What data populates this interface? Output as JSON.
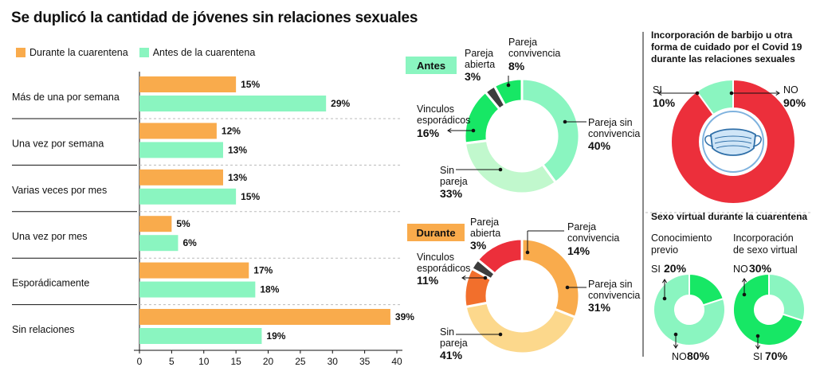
{
  "title": "Se duplicó la cantidad de jóvenes sin relaciones sexuales",
  "colors": {
    "durante": "#f9ab4c",
    "antes": "#8af5c0",
    "red": "#ec2f3b",
    "green": "#17e765",
    "lightgreen": "#8af5c0",
    "palegreen": "#c1f8cd",
    "orange": "#f9ab4c",
    "paleorange": "#fcd88c",
    "darkorange": "#f26f2c",
    "darkgray": "#3d3d3d"
  },
  "legend": {
    "durante": "Durante la cuarentena",
    "antes": "Antes de la cuarentena"
  },
  "chart_data": [
    {
      "type": "bar",
      "orientation": "horizontal",
      "categories": [
        "Más de una por semana",
        "Una vez por semana",
        "Varias veces por mes",
        "Una vez por mes",
        "Esporádicamente",
        "Sin relaciones"
      ],
      "series": [
        {
          "name": "Durante la cuarentena",
          "values": [
            15,
            12,
            13,
            5,
            17,
            39
          ],
          "labels": [
            "15%",
            "12%",
            "13%",
            "5%",
            "17%",
            "39%"
          ]
        },
        {
          "name": "Antes de la cuarentena",
          "values": [
            29,
            13,
            15,
            6,
            18,
            19
          ],
          "labels": [
            "29%",
            "13%",
            "15%",
            "6%",
            "18%",
            "19%"
          ]
        }
      ],
      "xlim": [
        0,
        40
      ],
      "ticks": [
        "0",
        "5",
        "10",
        "15",
        "20",
        "25",
        "30",
        "35",
        "40"
      ]
    },
    {
      "type": "pie",
      "tag": "Antes",
      "slices": [
        {
          "name": "Pareja sin convivencia",
          "line1": "Pareja sin",
          "line2": "convivencia",
          "value": 40,
          "label": "40%",
          "color": "#8af5c0"
        },
        {
          "name": "Sin pareja",
          "line1": "Sin",
          "line2": "pareja",
          "value": 33,
          "label": "33%",
          "color": "#c1f8cd"
        },
        {
          "name": "Vinculos esporádicos",
          "line1": "Vinculos",
          "line2": "esporádicos",
          "value": 16,
          "label": "16%",
          "color": "#17e765"
        },
        {
          "name": "Pareja abierta",
          "line1": "Pareja",
          "line2": "abierta",
          "value": 3,
          "label": "3%",
          "color": "#3d3d3d"
        },
        {
          "name": "Pareja convivencia",
          "line1": "Pareja",
          "line2": "convivencia",
          "value": 8,
          "label": "8%",
          "color": "#17e765"
        }
      ]
    },
    {
      "type": "pie",
      "tag": "Durante",
      "slices": [
        {
          "name": "Pareja sin convivencia",
          "line1": "Pareja sin",
          "line2": "convivencia",
          "value": 31,
          "label": "31%",
          "color": "#f9ab4c"
        },
        {
          "name": "Sin pareja",
          "line1": "Sin",
          "line2": "pareja",
          "value": 41,
          "label": "41%",
          "color": "#fcd88c"
        },
        {
          "name": "Vinculos esporádicos",
          "line1": "Vinculos",
          "line2": "esporádicos",
          "value": 11,
          "label": "11%",
          "color": "#f26f2c"
        },
        {
          "name": "Pareja abierta",
          "line1": "Pareja",
          "line2": "abierta",
          "value": 3,
          "label": "3%",
          "color": "#3d3d3d"
        },
        {
          "name": "Pareja convivencia",
          "line1": "Pareja",
          "line2": "convivencia",
          "value": 14,
          "label": "14%",
          "color": "#ec2f3b"
        }
      ]
    },
    {
      "type": "pie",
      "title_lines": [
        "Incorporación de barbijo u otra",
        "forma de cuidado por el Covid 19",
        "durante las relaciones sexuales"
      ],
      "slices": [
        {
          "name": "SI",
          "value": 10,
          "label": "10%",
          "color": "#8af5c0"
        },
        {
          "name": "NO",
          "value": 90,
          "label": "90%",
          "color": "#ec2f3b"
        }
      ]
    },
    {
      "type": "pie",
      "section_title": "Sexo virtual durante la cuarentena",
      "title_lines": [
        "Conocimiento",
        "previo"
      ],
      "slices": [
        {
          "name": "SI",
          "value": 20,
          "label": "20%",
          "color": "#17e765"
        },
        {
          "name": "NO",
          "value": 80,
          "label": "80%",
          "color": "#8af5c0"
        }
      ]
    },
    {
      "type": "pie",
      "title_lines": [
        "Incorporación",
        "de sexo virtual"
      ],
      "slices": [
        {
          "name": "NO",
          "value": 30,
          "label": "30%",
          "color": "#8af5c0"
        },
        {
          "name": "SI",
          "value": 70,
          "label": "70%",
          "color": "#17e765"
        }
      ]
    }
  ]
}
